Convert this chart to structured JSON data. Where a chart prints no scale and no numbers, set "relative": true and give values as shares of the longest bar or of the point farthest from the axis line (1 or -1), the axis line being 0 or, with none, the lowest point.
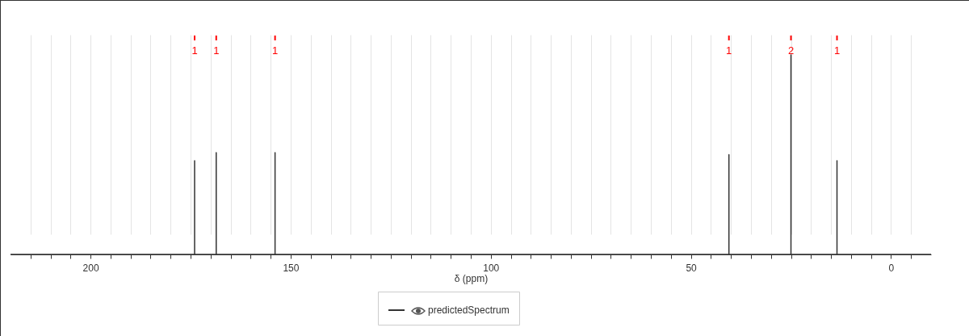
{
  "chart_data": {
    "type": "line",
    "relative": true,
    "xlabel": "δ (ppm)",
    "legend": "bottom",
    "grid": "x",
    "xlim": [
      220,
      -10
    ],
    "xticks": [
      {
        "value": 215,
        "label": null
      },
      {
        "value": 210,
        "label": null
      },
      {
        "value": 205,
        "label": null
      },
      200,
      {
        "value": 195,
        "label": null
      },
      {
        "value": 190,
        "label": null
      },
      {
        "value": 185,
        "label": null
      },
      {
        "value": 180,
        "label": null
      },
      {
        "value": 175,
        "label": null
      },
      {
        "value": 170,
        "label": null
      },
      {
        "value": 165,
        "label": null
      },
      {
        "value": 160,
        "label": null
      },
      {
        "value": 155,
        "label": null
      },
      150,
      {
        "value": 145,
        "label": null
      },
      {
        "value": 140,
        "label": null
      },
      {
        "value": 135,
        "label": null
      },
      {
        "value": 130,
        "label": null
      },
      {
        "value": 125,
        "label": null
      },
      {
        "value": 120,
        "label": null
      },
      {
        "value": 115,
        "label": null
      },
      {
        "value": 110,
        "label": null
      },
      {
        "value": 105,
        "label": null
      },
      100,
      {
        "value": 95,
        "label": null
      },
      {
        "value": 90,
        "label": null
      },
      {
        "value": 85,
        "label": null
      },
      {
        "value": 80,
        "label": null
      },
      {
        "value": 75,
        "label": null
      },
      {
        "value": 70,
        "label": null
      },
      {
        "value": 65,
        "label": null
      },
      {
        "value": 60,
        "label": null
      },
      {
        "value": 55,
        "label": null
      },
      50,
      {
        "value": 45,
        "label": null
      },
      {
        "value": 40,
        "label": null
      },
      {
        "value": 35,
        "label": null
      },
      {
        "value": 30,
        "label": null
      },
      {
        "value": 25,
        "label": null
      },
      {
        "value": 20,
        "label": null
      },
      {
        "value": 15,
        "label": null
      },
      {
        "value": 10,
        "label": null
      },
      {
        "value": 5,
        "label": null
      },
      0,
      {
        "value": -5,
        "label": null
      }
    ],
    "annotations": [
      {
        "text": "1",
        "x": 174.0
      },
      {
        "text": "1",
        "x": 168.6
      },
      {
        "text": "1",
        "x": 153.9
      },
      {
        "text": "1",
        "x": 40.5
      },
      {
        "text": "2",
        "x": 25.0
      },
      {
        "text": "1",
        "x": 13.5
      }
    ],
    "series": [
      {
        "name": "predictedSpectrum",
        "color": "#333333",
        "marker": "none",
        "x": [
          220,
          174.0,
          174.0,
          174.0,
          168.6,
          168.6,
          168.6,
          153.9,
          153.9,
          153.9,
          40.5,
          40.5,
          40.5,
          25.0,
          25.0,
          25.0,
          13.5,
          13.5,
          13.5,
          -10
        ],
        "values": [
          0,
          0,
          0.47,
          0,
          0,
          0.51,
          0,
          0,
          0.51,
          0,
          0,
          0.5,
          0,
          0,
          1,
          0,
          0,
          0.47,
          0,
          0
        ]
      }
    ]
  }
}
